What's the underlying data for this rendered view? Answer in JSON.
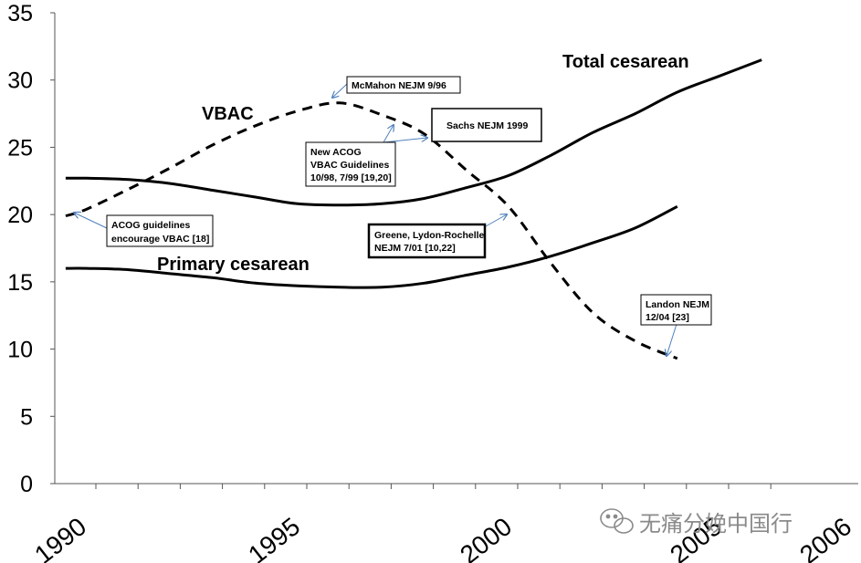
{
  "chart_data": {
    "type": "line",
    "title": "",
    "xlabel": "",
    "ylabel": "",
    "xlim": [
      1990,
      2006
    ],
    "ylim": [
      0,
      35
    ],
    "yticks": [
      "0",
      "5",
      "10",
      "15",
      "20",
      "25",
      "30",
      "35"
    ],
    "xticks": [
      "1990",
      "1995",
      "2000",
      "2005",
      "2006"
    ],
    "series": [
      {
        "name": "Total cesarean",
        "style": "solid",
        "x": [
          1989.5,
          1990,
          1991,
          1992,
          1993,
          1994,
          1995,
          1996,
          1997,
          1998,
          1999,
          2000,
          2001,
          2002,
          2003,
          2004,
          2005,
          2006
        ],
        "values": [
          22.7,
          22.7,
          22.6,
          22.3,
          21.8,
          21.3,
          20.8,
          20.7,
          20.8,
          21.2,
          22.0,
          22.9,
          24.4,
          26.1,
          27.5,
          29.1,
          30.3,
          31.5
        ]
      },
      {
        "name": "Primary cesarean",
        "style": "solid",
        "x": [
          1989.5,
          1990,
          1991,
          1992,
          1993,
          1994,
          1995,
          1996,
          1997,
          1998,
          1999,
          2000,
          2001,
          2002,
          2003,
          2004
        ],
        "values": [
          16.0,
          16.0,
          15.9,
          15.6,
          15.3,
          14.9,
          14.7,
          14.6,
          14.6,
          14.9,
          15.5,
          16.1,
          16.9,
          17.9,
          19.0,
          20.6
        ]
      },
      {
        "name": "VBAC",
        "style": "dashed",
        "x": [
          1989.5,
          1990,
          1991,
          1992,
          1993,
          1994,
          1995,
          1996,
          1997,
          1998,
          1999,
          2000,
          2001,
          2002,
          2003,
          2004
        ],
        "values": [
          19.9,
          20.4,
          21.9,
          23.5,
          25.2,
          26.6,
          27.7,
          28.3,
          27.4,
          26.0,
          23.3,
          20.6,
          16.4,
          12.7,
          10.6,
          9.3
        ]
      }
    ],
    "series_labels": {
      "total": "Total cesarean",
      "vbac": "VBAC",
      "primary": "Primary cesarean"
    },
    "annotations": [
      {
        "id": "acog",
        "lines": [
          "ACOG guidelines",
          "encourage VBAC [18]"
        ],
        "bold_box": false
      },
      {
        "id": "mcmahon",
        "lines": [
          "McMahon NEJM 9/96"
        ],
        "bold_box": false
      },
      {
        "id": "newacog",
        "lines": [
          "New ACOG",
          "VBAC Guidelines",
          "10/98, 7/99 [19,20]"
        ],
        "bold_box": false
      },
      {
        "id": "sachs",
        "lines": [
          "Sachs NEJM 1999"
        ],
        "bold_box": false
      },
      {
        "id": "greene",
        "lines": [
          "Greene, Lydon-Rochelle",
          "NEJM 7/01 [10,22]"
        ],
        "bold_box": true
      },
      {
        "id": "landon",
        "lines": [
          "Landon NEJM",
          "12/04 [23]"
        ],
        "bold_box": false
      }
    ],
    "grid": false,
    "legend": "none"
  },
  "watermark": {
    "text": "无痛分娩中国行",
    "icon": "wechat-icon"
  },
  "colors": {
    "line": "#000000",
    "arrow": "#4f81bd",
    "watermark": "#8a8a8a",
    "background": "#ffffff"
  }
}
